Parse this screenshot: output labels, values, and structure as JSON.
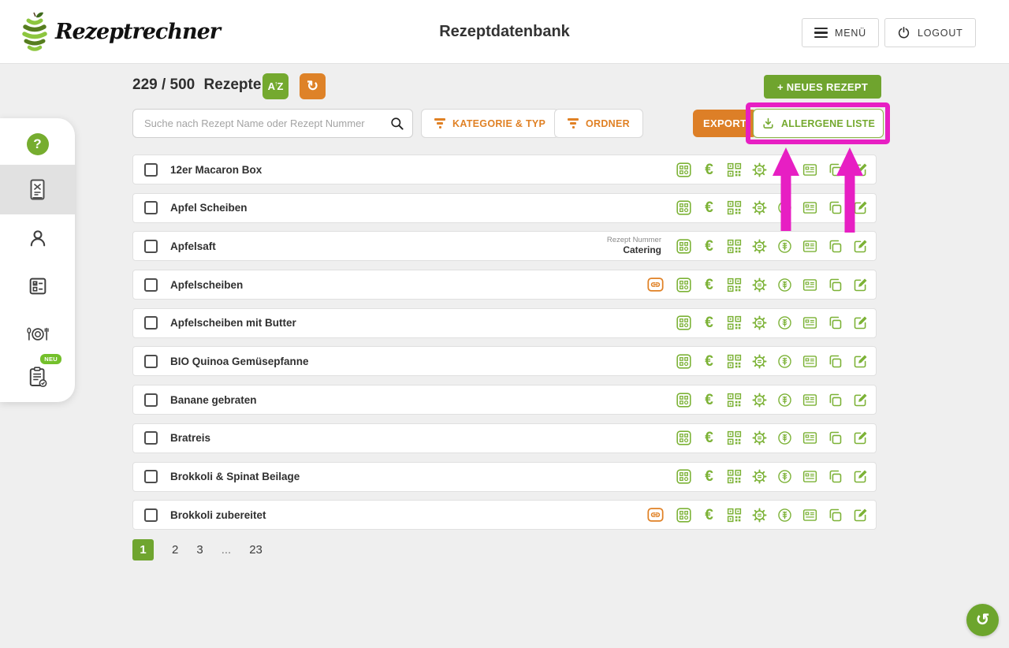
{
  "header": {
    "logo_text": "Rezeptrechner",
    "title": "Rezeptdatenbank",
    "menu_label": "MENÜ",
    "logout_label": "LOGOUT"
  },
  "toolbar": {
    "count": "229 / 500",
    "count_unit": "Rezepte",
    "sort_a": "A",
    "sort_z": "Z",
    "search_placeholder": "Suche nach Rezept Name oder Rezept Nummer",
    "filter_category": "KATEGORIE & TYP",
    "filter_folder": "ORDNER",
    "export_label": "EXPORT",
    "allergen_label": "ALLERGENE LISTE",
    "new_recipe_label": "+ NEUES REZEPT"
  },
  "icons": {
    "refresh": "↻",
    "undo": "↺",
    "help": "?",
    "euro": "€"
  },
  "sidebar": {
    "new_badge": "NEU"
  },
  "rows": [
    {
      "name": "12er Macaron Box"
    },
    {
      "name": "Apfel Scheiben"
    },
    {
      "name": "Apfelsaft",
      "number_label": "Rezept Nummer",
      "number_value": "Catering"
    },
    {
      "name": "Apfelscheiben",
      "linked": true
    },
    {
      "name": "Apfelscheiben mit Butter"
    },
    {
      "name": "BIO Quinoa Gemüsepfanne"
    },
    {
      "name": "Banane gebraten"
    },
    {
      "name": "Bratreis"
    },
    {
      "name": "Brokkoli & Spinat Beilage"
    },
    {
      "name": "Brokkoli zubereitet",
      "linked": true
    }
  ],
  "pagination": {
    "pages": [
      "1",
      "2",
      "3",
      "...",
      "23"
    ],
    "active": "1"
  },
  "colors": {
    "accent_green": "#74a92f",
    "accent_orange": "#de8228",
    "highlight_magenta": "#e71fc3"
  }
}
